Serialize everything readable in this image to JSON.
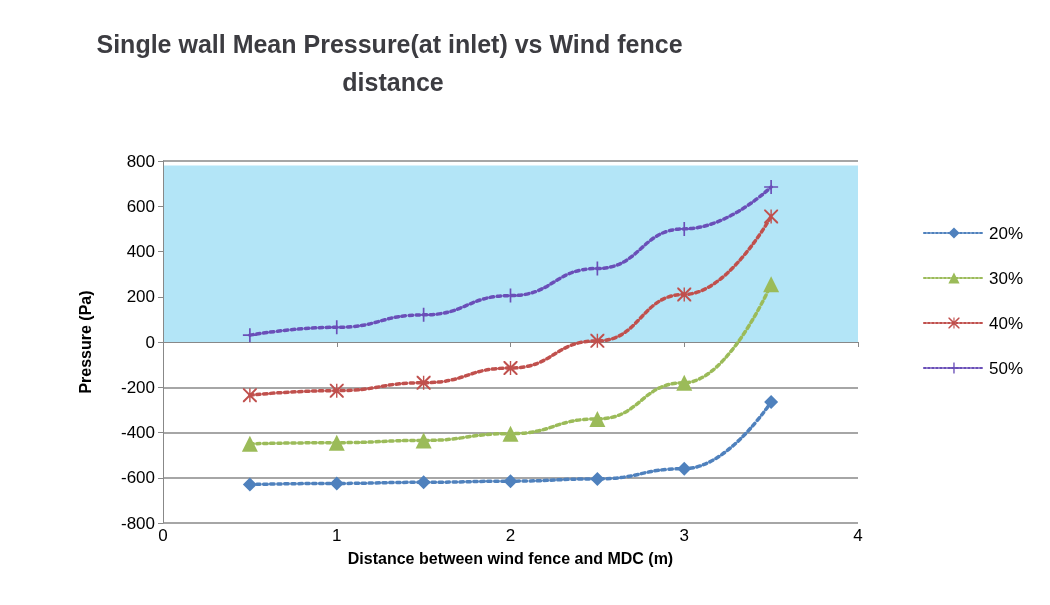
{
  "chart_data": {
    "type": "line",
    "title": "Single wall Mean Pressure(at inlet) vs Wind fence distance",
    "xlabel": "Distance between wind fence and MDC (m)",
    "ylabel": "Pressure (Pa)",
    "x": [
      0.5,
      1,
      1.5,
      2,
      2.5,
      3,
      3.5
    ],
    "series": [
      {
        "name": "20%",
        "color": "#4f81bd",
        "marker": "diamond",
        "values": [
          -630,
          -625,
          -620,
          -615,
          -605,
          -560,
          -265
        ]
      },
      {
        "name": "30%",
        "color": "#9bbb59",
        "marker": "triangle",
        "values": [
          -450,
          -445,
          -435,
          -405,
          -340,
          -180,
          255
        ]
      },
      {
        "name": "40%",
        "color": "#c0504d",
        "marker": "star",
        "values": [
          -235,
          -215,
          -180,
          -115,
          5,
          210,
          555
        ]
      },
      {
        "name": "50%",
        "color": "#6a4fb8",
        "marker": "cross",
        "values": [
          30,
          65,
          120,
          205,
          325,
          500,
          685
        ]
      }
    ],
    "xlim": [
      0,
      4
    ],
    "xticks": [
      0,
      1,
      2,
      3,
      4
    ],
    "ylim": [
      -800,
      800
    ],
    "yticks": [
      -800,
      -600,
      -400,
      -200,
      0,
      200,
      400,
      600,
      800
    ],
    "bands": [
      {
        "axis": "y",
        "from": 0,
        "to": 780,
        "color": "#b3e5f7"
      }
    ],
    "grid": "y",
    "legend": "right",
    "line_style": "dotted"
  }
}
